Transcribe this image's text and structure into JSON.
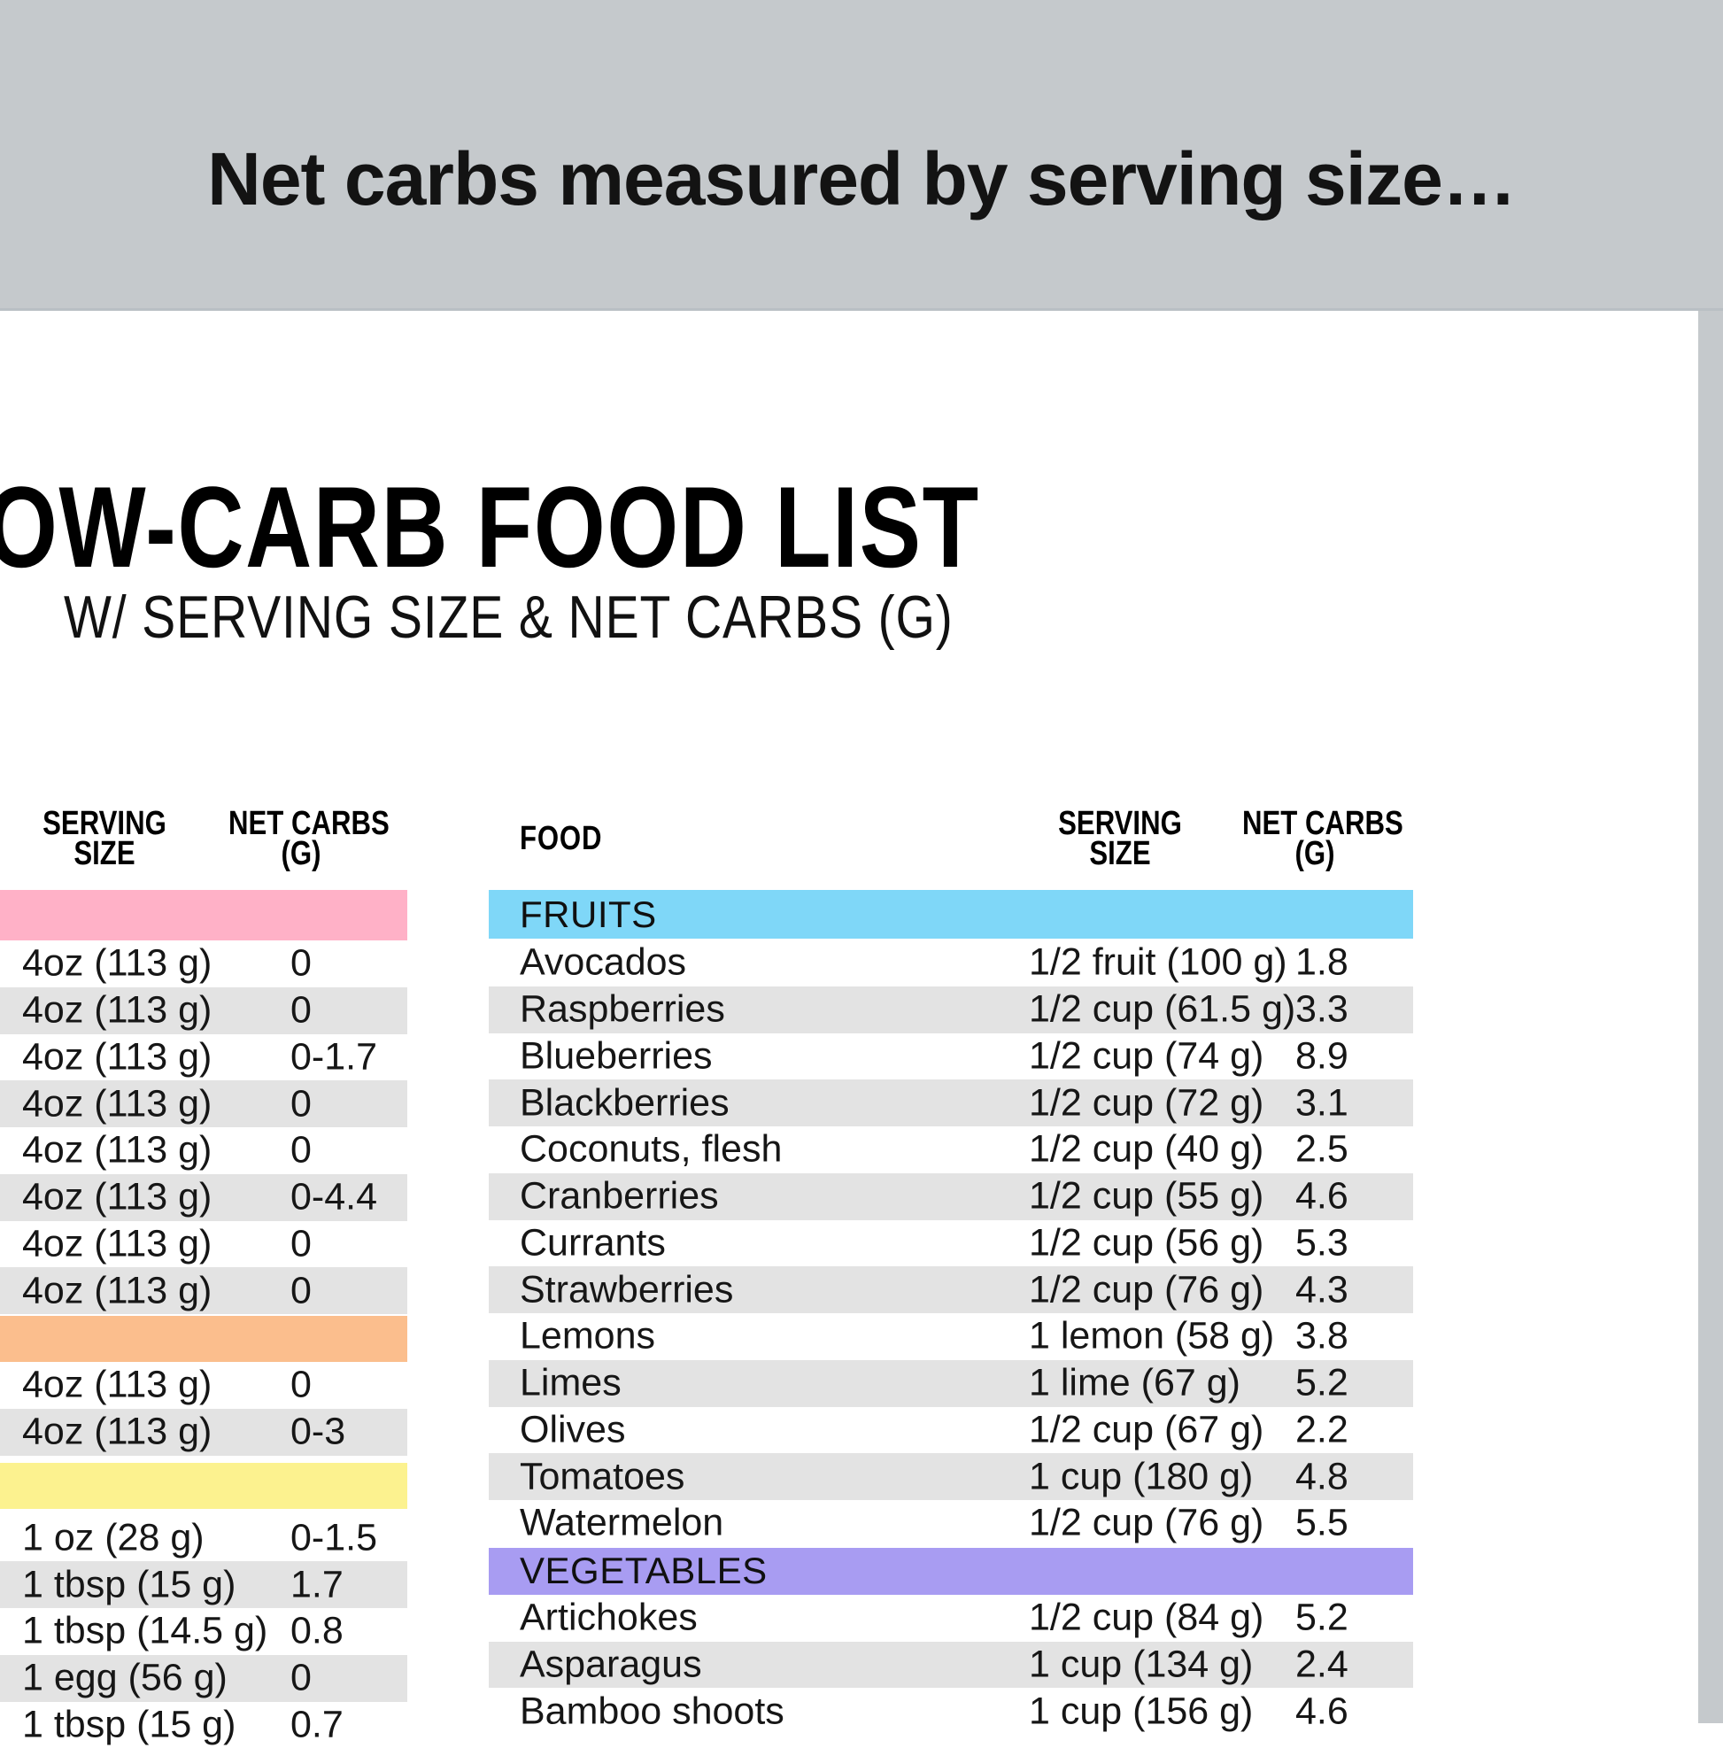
{
  "banner": {
    "text": "Net carbs measured by serving size…"
  },
  "page": {
    "title": "OW-CARB FOOD LIST",
    "subtitle": "W/ SERVING SIZE & NET CARBS (G)"
  },
  "colors": {
    "banner_bg": "#c5c9cc",
    "row_alt": "#e3e3e3",
    "pink": "#ffb1c7",
    "orange": "#fbbe8d",
    "yellow": "#fcf28f",
    "blue": "#7fd7f8",
    "purple": "#a89cf2"
  },
  "left_table": {
    "headers": {
      "serving_line1": "SERVING",
      "serving_line2": "SIZE",
      "netcarbs_line1": "NET CARBS",
      "netcarbs_line2": "(G)"
    },
    "sections": [
      {
        "band_color": "pink",
        "band_label": "",
        "rows": [
          [
            "4oz (113 g)",
            "0"
          ],
          [
            "4oz (113 g)",
            "0"
          ],
          [
            "4oz (113 g)",
            "0-1.7"
          ],
          [
            "4oz (113 g)",
            "0"
          ],
          [
            "4oz (113 g)",
            "0"
          ],
          [
            "4oz (113 g)",
            "0-4.4"
          ],
          [
            "4oz (113 g)",
            "0"
          ],
          [
            "4oz (113 g)",
            "0"
          ]
        ]
      },
      {
        "band_color": "orange",
        "band_label": "",
        "rows": [
          [
            "4oz (113 g)",
            "0"
          ],
          [
            "4oz (113 g)",
            "0-3"
          ]
        ]
      },
      {
        "band_color": "yellow",
        "band_label": "",
        "rows": [
          [
            "1 oz (28 g)",
            "0-1.5"
          ],
          [
            "1 tbsp (15 g)",
            "1.7"
          ],
          [
            "1 tbsp (14.5 g)",
            "0.8"
          ],
          [
            "1 egg (56 g)",
            "0"
          ],
          [
            "1 tbsp (15 g)",
            "0.7"
          ]
        ]
      }
    ]
  },
  "right_table": {
    "headers": {
      "food": "FOOD",
      "serving_line1": "SERVING",
      "serving_line2": "SIZE",
      "netcarbs_line1": "NET CARBS",
      "netcarbs_line2": "(G)"
    },
    "sections": [
      {
        "band_color": "blue",
        "band_label": "FRUITS",
        "rows": [
          [
            "Avocados",
            "1/2 fruit (100 g)",
            "1.8"
          ],
          [
            "Raspberries",
            "1/2 cup (61.5 g)",
            "3.3"
          ],
          [
            "Blueberries",
            "1/2 cup (74 g)",
            "8.9"
          ],
          [
            "Blackberries",
            "1/2 cup (72 g)",
            "3.1"
          ],
          [
            "Coconuts, flesh",
            "1/2 cup (40 g)",
            "2.5"
          ],
          [
            "Cranberries",
            "1/2 cup (55 g)",
            "4.6"
          ],
          [
            "Currants",
            "1/2 cup (56 g)",
            "5.3"
          ],
          [
            "Strawberries",
            "1/2 cup (76 g)",
            "4.3"
          ],
          [
            "Lemons",
            "1 lemon (58 g)",
            "3.8"
          ],
          [
            "Limes",
            "1 lime (67 g)",
            "5.2"
          ],
          [
            "Olives",
            "1/2 cup (67 g)",
            "2.2"
          ],
          [
            "Tomatoes",
            "1 cup (180 g)",
            "4.8"
          ],
          [
            "Watermelon",
            "1/2 cup (76 g)",
            "5.5"
          ]
        ]
      },
      {
        "band_color": "purple",
        "band_label": "VEGETABLES",
        "rows": [
          [
            "Artichokes",
            "1/2 cup (84 g)",
            "5.2"
          ],
          [
            "Asparagus",
            "1 cup (134 g)",
            "2.4"
          ],
          [
            "Bamboo shoots",
            "1 cup (156 g)",
            "4.6"
          ]
        ]
      }
    ]
  }
}
